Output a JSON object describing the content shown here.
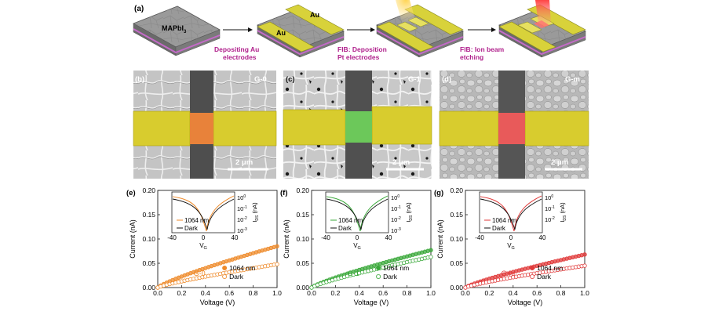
{
  "panel_a": {
    "label": "(a)",
    "material": "MAPbI",
    "material_sub": "3",
    "au_label_1": "Au",
    "au_label_2": "Au",
    "step1_line1": "Depositing Au",
    "step1_line2": "electrodes",
    "step2_line1": "FIB: Deposition",
    "step2_line2": "Pt electrodes",
    "step3_line1": "FIB: Ion beam",
    "step3_line2": "etching"
  },
  "colors": {
    "gold": "#d8d23a",
    "step_text": "#b0208c",
    "g0": "#ee8a2a",
    "g1": "#3aa83a",
    "gm": "#e03a3a"
  },
  "sem": [
    {
      "label": "(b)",
      "tag": "G-0",
      "scale": "2 μm",
      "channel_color": "#e8823a"
    },
    {
      "label": "(c)",
      "tag": "G-1",
      "scale": "2 μm",
      "channel_color": "#6cc85a"
    },
    {
      "label": "(d)",
      "tag": "G-m",
      "scale": "2 μm",
      "channel_color": "#e85a5a"
    }
  ],
  "chart_data": [
    {
      "type": "scatter",
      "label": "(e)",
      "tag": "G-0",
      "color": "#ee8a2a",
      "xlabel": "Voltage (V)",
      "ylabel": "Current (nA)",
      "xlim": [
        0,
        1.0
      ],
      "ylim": [
        0,
        0.2
      ],
      "xticks": [
        "0.0",
        "0.2",
        "0.4",
        "0.6",
        "0.8",
        "1.0"
      ],
      "yticks": [
        "0.00",
        "0.05",
        "0.10",
        "0.15",
        "0.20"
      ],
      "series": [
        {
          "name": "1064 nm",
          "filled": true,
          "x_end": 1.0,
          "y_end": 0.085
        },
        {
          "name": "Dark",
          "filled": false,
          "x_end": 1.0,
          "y_end": 0.048
        }
      ],
      "inset": {
        "xlabel": "V",
        "xlabel_sub": "G",
        "ylabel": "I",
        "ylabel_sub": "DS",
        "ylabel_unit": "(nA)",
        "xticks": [
          "-40",
          "0",
          "40"
        ],
        "yticks": [
          "10",
          "10",
          "10",
          "10"
        ],
        "ytick_exp": [
          "0",
          "-1",
          "-2",
          "-3"
        ],
        "legend": [
          "1064 nm",
          "Dark"
        ]
      }
    },
    {
      "type": "scatter",
      "label": "(f)",
      "tag": "G-1",
      "color": "#3aa83a",
      "xlabel": "Voltage (V)",
      "ylabel": "Current (nA)",
      "xlim": [
        0,
        1.0
      ],
      "ylim": [
        0,
        0.2
      ],
      "xticks": [
        "0.0",
        "0.2",
        "0.4",
        "0.6",
        "0.8",
        "1.0"
      ],
      "yticks": [
        "0.00",
        "0.05",
        "0.10",
        "0.15",
        "0.20"
      ],
      "series": [
        {
          "name": "1064 nm",
          "filled": true,
          "x_end": 1.0,
          "y_end": 0.077
        },
        {
          "name": "Dark",
          "filled": false,
          "x_end": 1.0,
          "y_end": 0.063
        }
      ],
      "inset": {
        "xlabel": "V",
        "xlabel_sub": "G",
        "ylabel": "I",
        "ylabel_sub": "DS",
        "ylabel_unit": "(nA)",
        "xticks": [
          "-40",
          "0",
          "40"
        ],
        "yticks": [
          "10",
          "10",
          "10",
          "10"
        ],
        "ytick_exp": [
          "0",
          "-1",
          "-2",
          "-3"
        ],
        "legend": [
          "1064 nm",
          "Dark"
        ]
      }
    },
    {
      "type": "scatter",
      "label": "(g)",
      "tag": "G-m",
      "color": "#e03a3a",
      "xlabel": "Voltage (V)",
      "ylabel": "Current (nA)",
      "xlim": [
        0,
        1.0
      ],
      "ylim": [
        0,
        0.2
      ],
      "xticks": [
        "0.0",
        "0.2",
        "0.4",
        "0.6",
        "0.8",
        "1.0"
      ],
      "yticks": [
        "0.00",
        "0.05",
        "0.10",
        "0.15",
        "0.20"
      ],
      "series": [
        {
          "name": "1064 nm",
          "filled": true,
          "x_end": 1.0,
          "y_end": 0.068
        },
        {
          "name": "Dark",
          "filled": false,
          "x_end": 1.0,
          "y_end": 0.045
        }
      ],
      "inset": {
        "xlabel": "V",
        "xlabel_sub": "G",
        "ylabel": "I",
        "ylabel_sub": "DS",
        "ylabel_unit": "(nA)",
        "xticks": [
          "-40",
          "0",
          "40"
        ],
        "yticks": [
          "10",
          "10",
          "10"
        ],
        "ytick_exp": [
          "0",
          "-1",
          "-2"
        ],
        "legend": [
          "1064 nm",
          "Dark"
        ]
      }
    }
  ]
}
